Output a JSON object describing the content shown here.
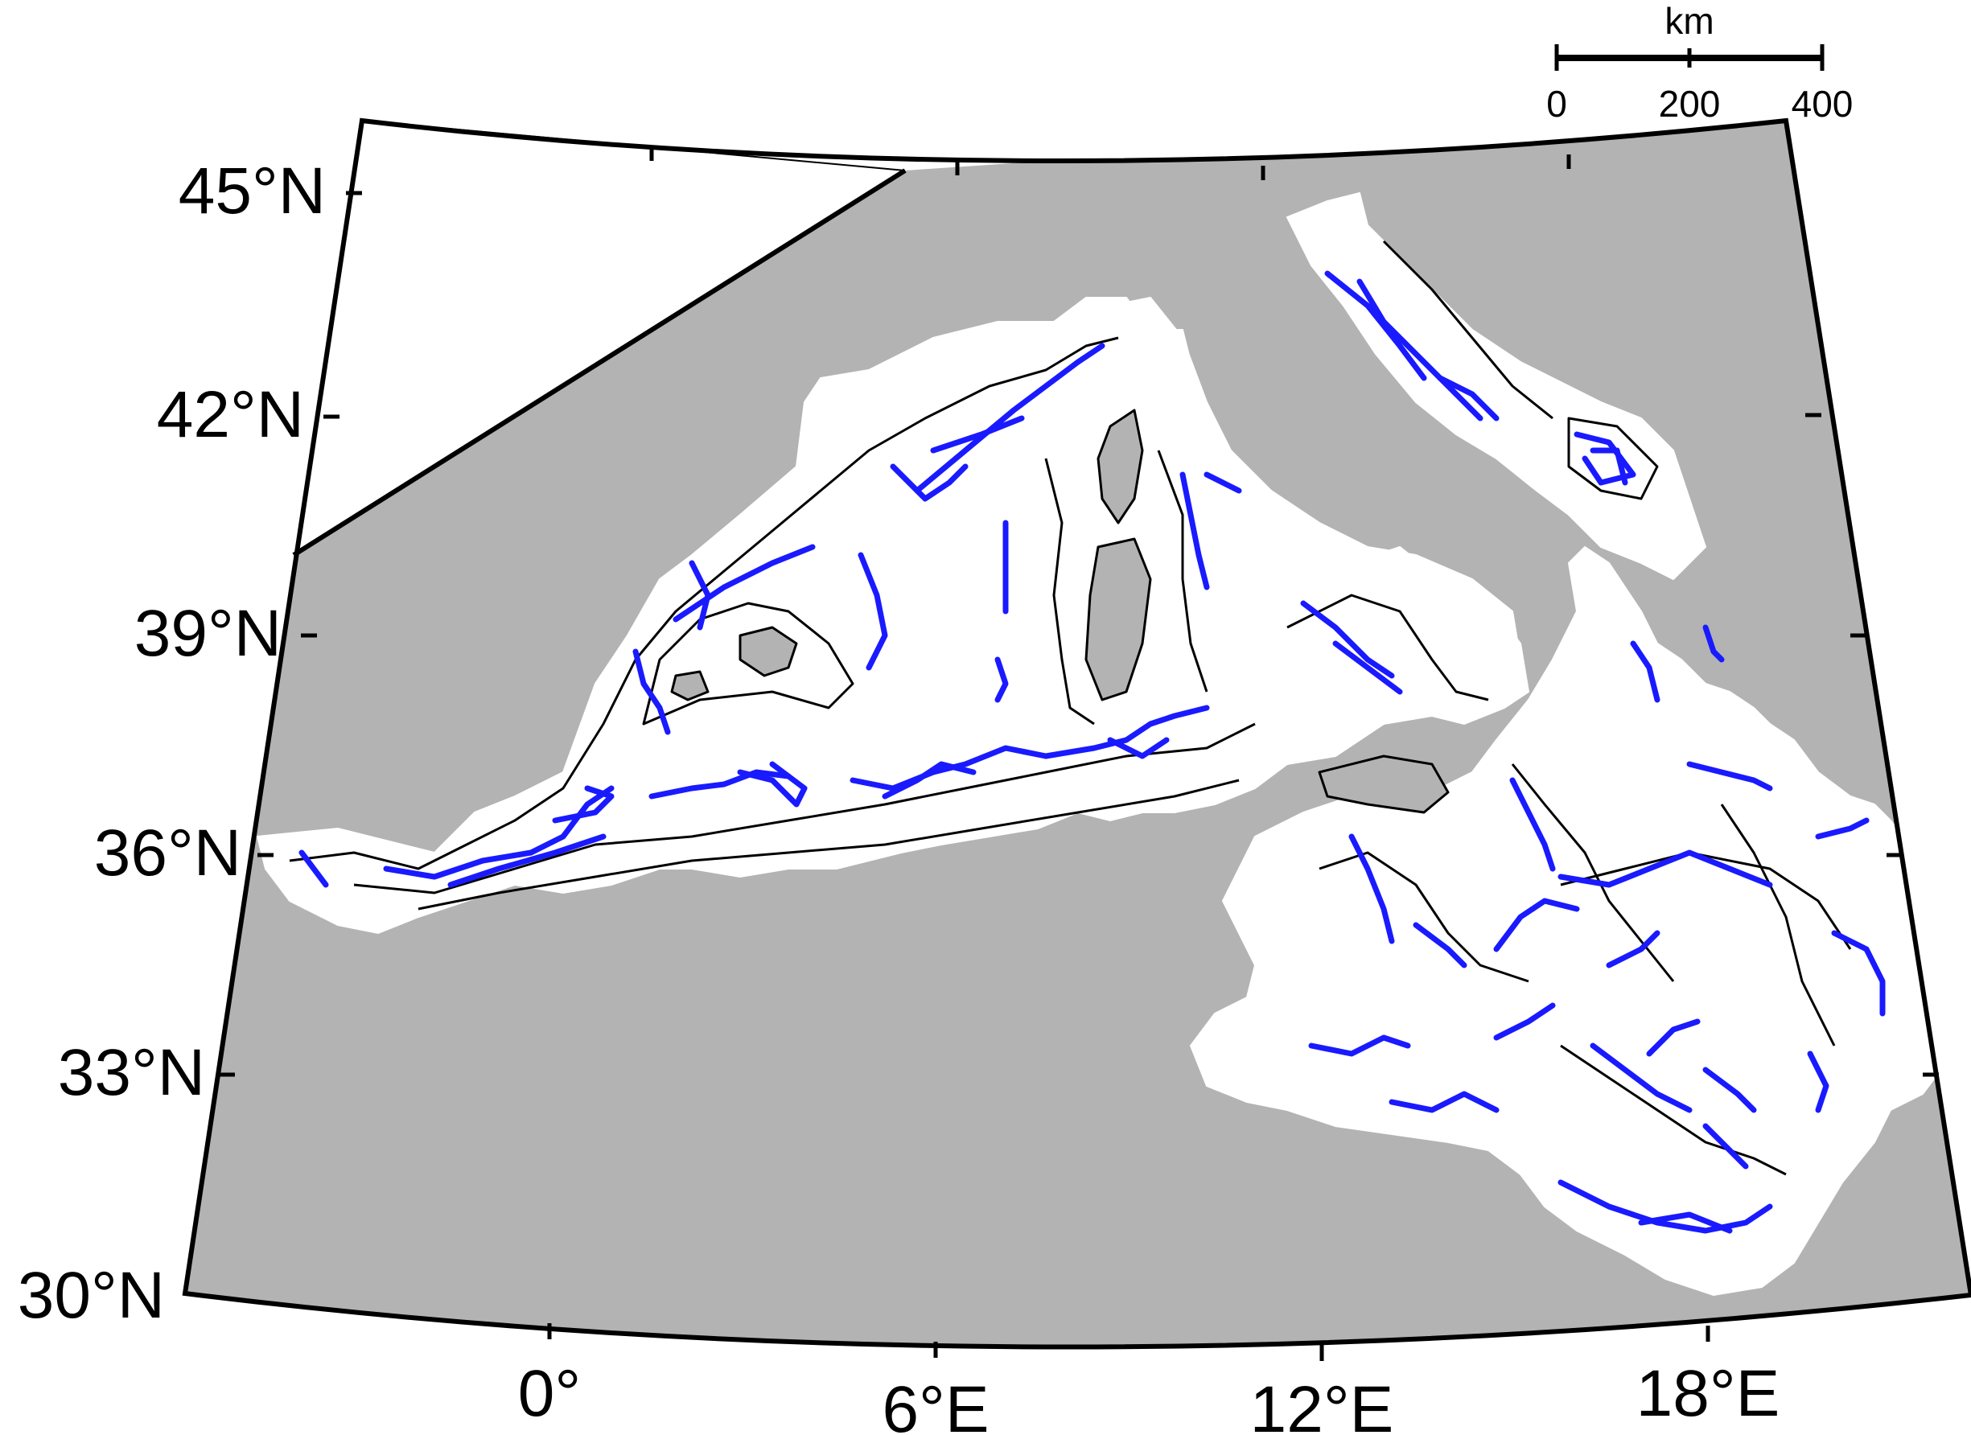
{
  "map": {
    "latitude_labels": [
      "45°N",
      "42°N",
      "39°N",
      "36°N",
      "33°N",
      "30°N"
    ],
    "longitude_labels": [
      "0°",
      "6°E",
      "12°E",
      "18°E"
    ],
    "scale_bar": {
      "unit": "km",
      "ticks": [
        "0",
        "200",
        "400"
      ]
    },
    "colors": {
      "land": "#b3b3b3",
      "sea": "#ffffff",
      "tracks": "#1a1aff",
      "contours": "#000000"
    }
  }
}
